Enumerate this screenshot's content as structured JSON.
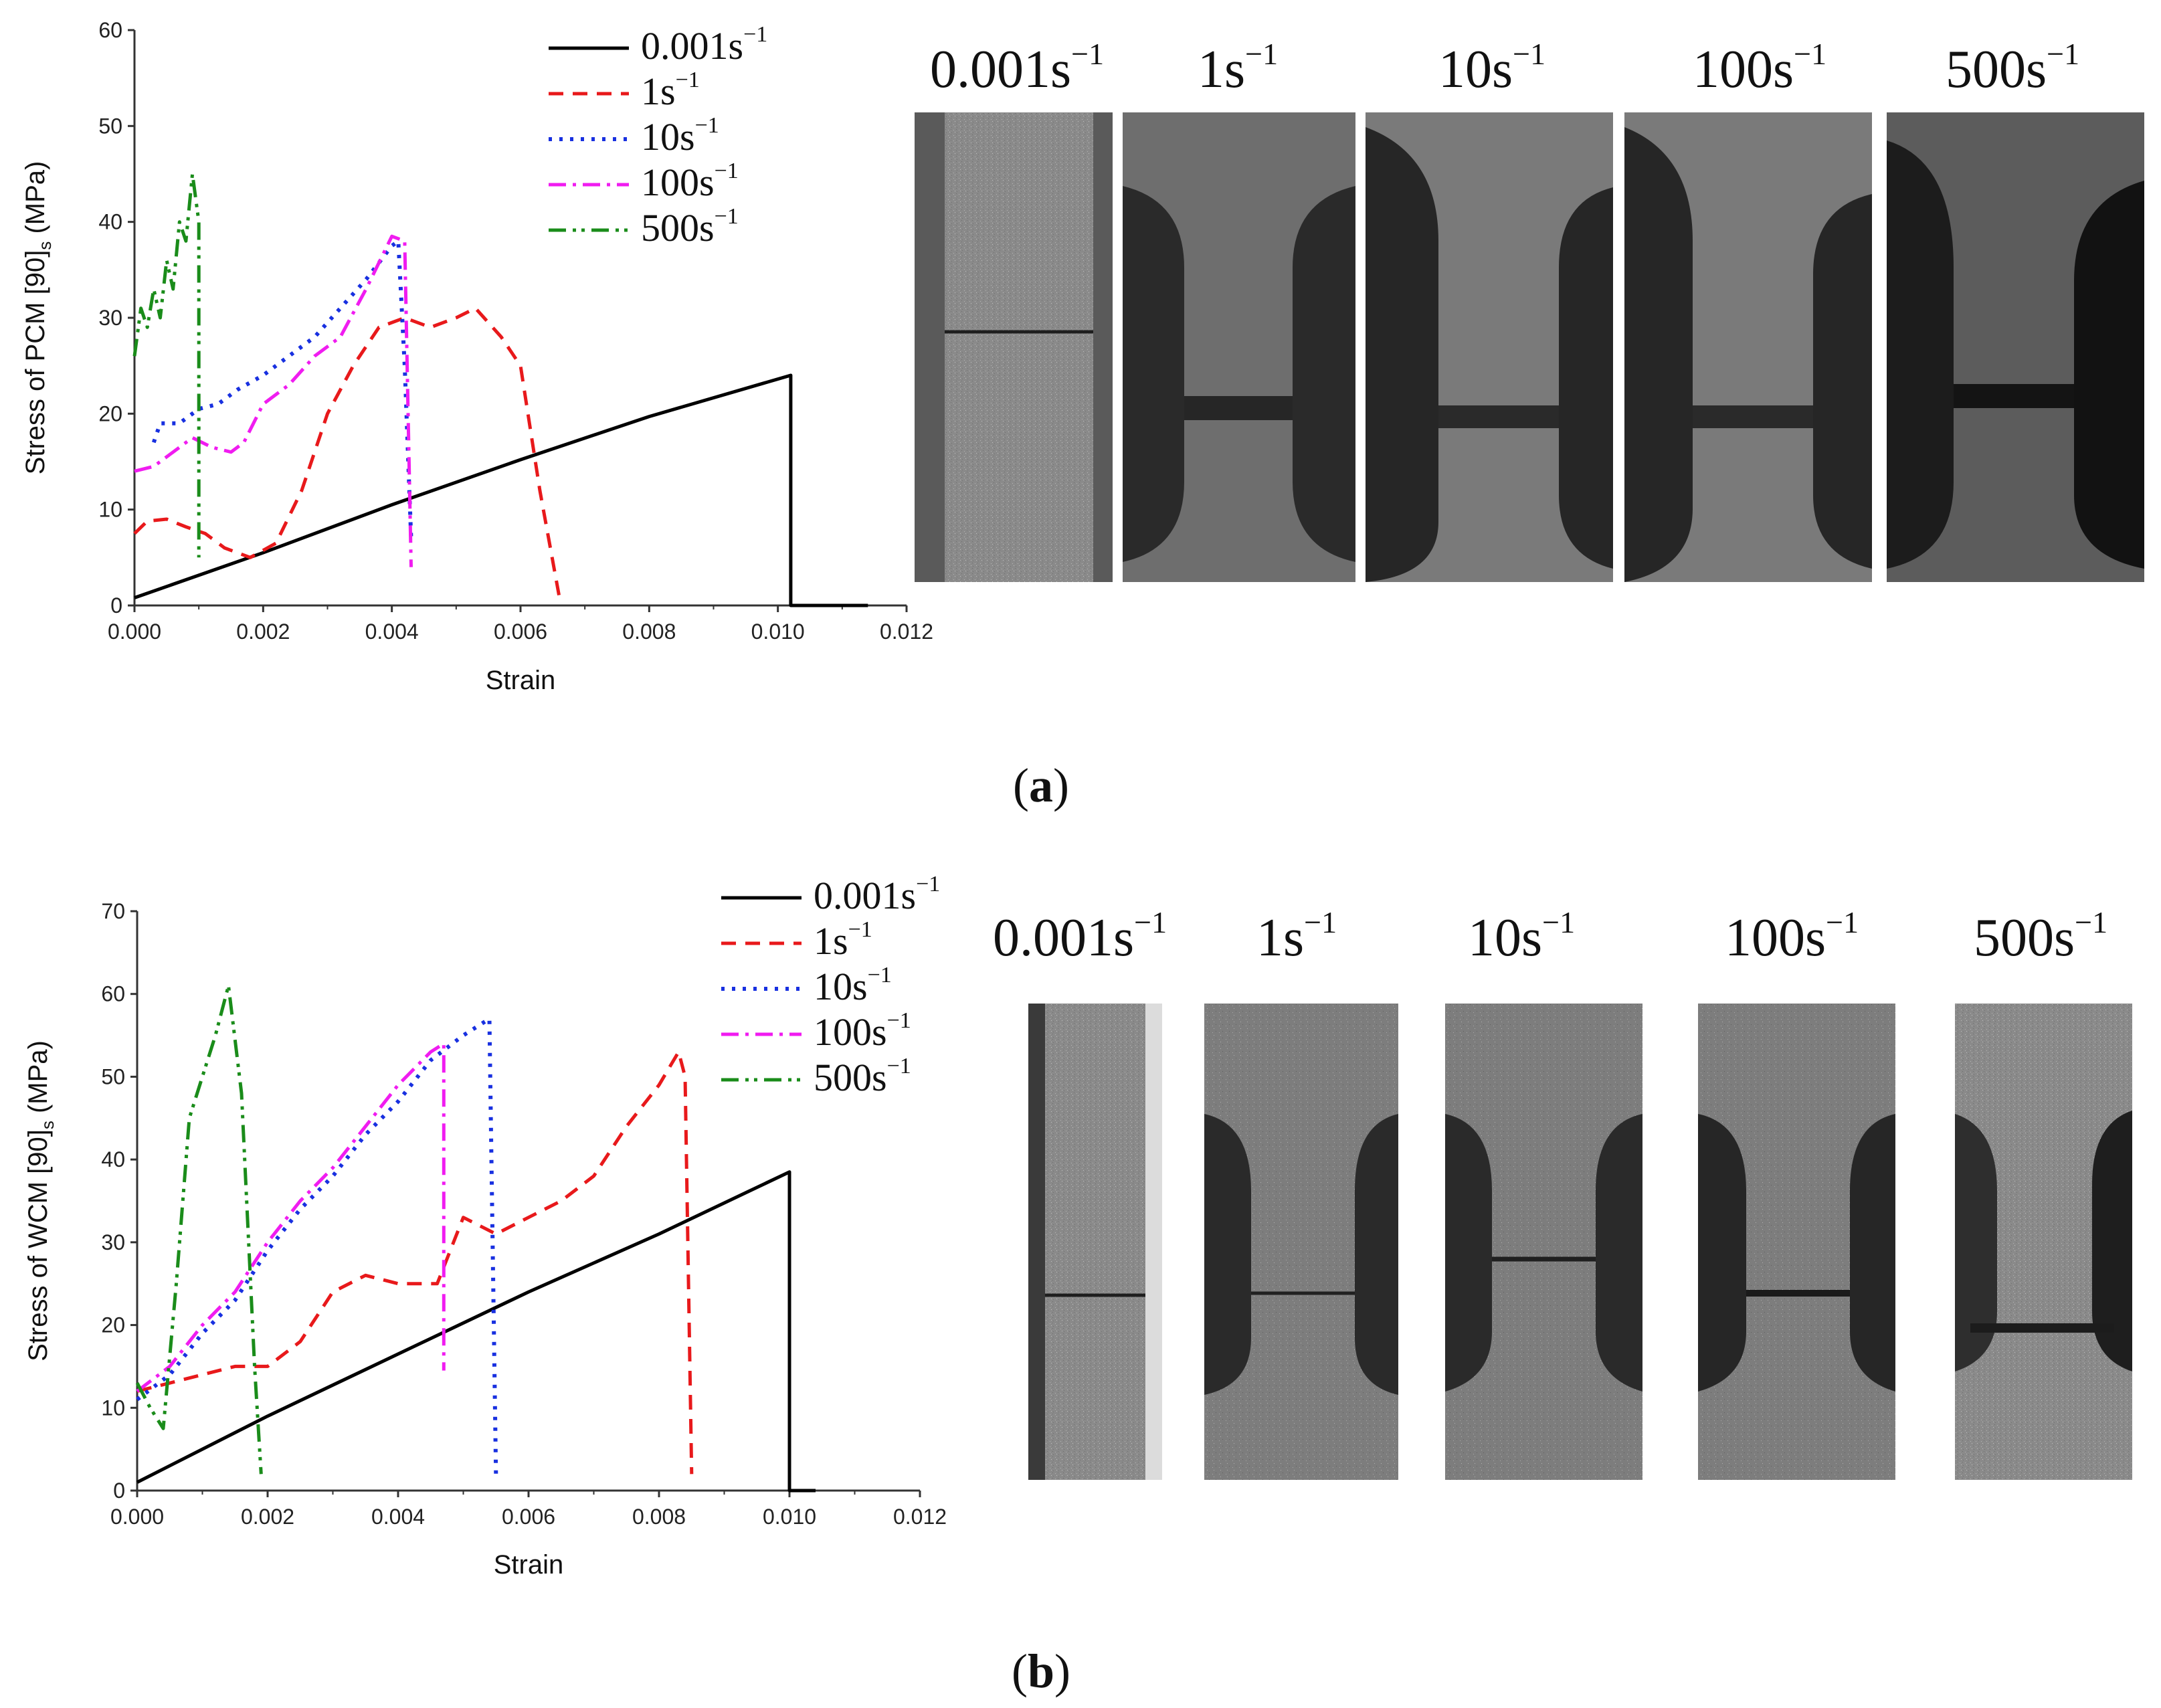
{
  "chart_data": [
    {
      "type": "line",
      "panel_label": "a",
      "xlabel": "Strain",
      "ylabel": "Stress of PCM [90]s (MPa)",
      "ylabel_parts": {
        "pre": "Stress of PCM [90]",
        "sub": "s",
        "post": " (MPa)"
      },
      "xlim": [
        0,
        0.012
      ],
      "ylim": [
        0,
        60
      ],
      "xticks": [
        0,
        0.002,
        0.004,
        0.006,
        0.008,
        0.01,
        0.012
      ],
      "xtick_labels": [
        "0.000",
        "0.002",
        "0.004",
        "0.006",
        "0.008",
        "0.010",
        "0.012"
      ],
      "yticks": [
        0,
        10,
        20,
        30,
        40,
        50,
        60
      ],
      "ytick_labels": [
        "0",
        "10",
        "20",
        "30",
        "40",
        "50",
        "60"
      ],
      "legend_position": "top-right",
      "series": [
        {
          "name": "0.001s-1",
          "base": "0.001s",
          "sup": "−1",
          "color": "#000000",
          "dash": "",
          "width": 5,
          "x": [
            0,
            0.002,
            0.004,
            0.006,
            0.008,
            0.0102,
            0.0102,
            0.0114
          ],
          "y": [
            0.8,
            5.5,
            10.5,
            15.2,
            19.7,
            24,
            0,
            0
          ]
        },
        {
          "name": "1s-1",
          "base": "1s",
          "sup": "−1",
          "color": "#e8191b",
          "dash": "22,14",
          "width": 5,
          "x": [
            0,
            0.0002,
            0.0005,
            0.0008,
            0.0011,
            0.0014,
            0.0018,
            0.0022,
            0.0026,
            0.003,
            0.0034,
            0.0038,
            0.0042,
            0.0046,
            0.005,
            0.0053,
            0.0057,
            0.006,
            0.0063,
            0.0066
          ],
          "y": [
            7.5,
            8.8,
            9,
            8.2,
            7.5,
            6,
            5,
            6.5,
            12,
            20,
            25,
            29,
            30,
            29,
            30,
            31,
            28,
            25,
            12,
            1
          ]
        },
        {
          "name": "10s-1",
          "base": "10s",
          "sup": "−1",
          "color": "#1830e0",
          "dash": "5,11",
          "width": 6,
          "x": [
            0.0003,
            0.0004,
            0.0007,
            0.001,
            0.0013,
            0.0016,
            0.002,
            0.0024,
            0.0028,
            0.0032,
            0.0036,
            0.004,
            0.0041,
            0.0042,
            0.0043
          ],
          "y": [
            17,
            19,
            19,
            20.5,
            21,
            22.5,
            24,
            26,
            28,
            31,
            34,
            37.5,
            38,
            25,
            7
          ]
        },
        {
          "name": "100s-1",
          "base": "100s",
          "sup": "−1",
          "color": "#f01cf0",
          "dash": "26,10,5,10",
          "width": 5,
          "x": [
            0,
            0.0003,
            0.0006,
            0.0009,
            0.0012,
            0.0015,
            0.0017,
            0.002,
            0.0024,
            0.0028,
            0.0032,
            0.0036,
            0.004,
            0.0042,
            0.0043
          ],
          "y": [
            14,
            14.5,
            16,
            17.5,
            16.5,
            16,
            17,
            21,
            23,
            26,
            28,
            33,
            38.5,
            38,
            4
          ]
        },
        {
          "name": "500s-1",
          "base": "500s",
          "sup": "−1",
          "color": "#1a8c1a",
          "dash": "26,10,5,8,5,10",
          "width": 5,
          "x": [
            0,
            0.0001,
            0.0002,
            0.0003,
            0.0004,
            0.0005,
            0.0006,
            0.0007,
            0.0008,
            0.0009,
            0.001,
            0.001
          ],
          "y": [
            26,
            31,
            29,
            33,
            30,
            36,
            33,
            40,
            38,
            45,
            40,
            5
          ]
        }
      ]
    },
    {
      "type": "line",
      "panel_label": "b",
      "xlabel": "Strain",
      "ylabel": "Stress of WCM [90]s (MPa)",
      "ylabel_parts": {
        "pre": "Stress of WCM [90]",
        "sub": "s",
        "post": " (MPa)"
      },
      "xlim": [
        0,
        0.012
      ],
      "ylim": [
        0,
        70
      ],
      "xticks": [
        0,
        0.002,
        0.004,
        0.006,
        0.008,
        0.01,
        0.012
      ],
      "xtick_labels": [
        "0.000",
        "0.002",
        "0.004",
        "0.006",
        "0.008",
        "0.010",
        "0.012"
      ],
      "yticks": [
        0,
        10,
        20,
        30,
        40,
        50,
        60,
        70
      ],
      "ytick_labels": [
        "0",
        "10",
        "20",
        "30",
        "40",
        "50",
        "60",
        "70"
      ],
      "legend_position": "top-right",
      "series": [
        {
          "name": "0.001s-1",
          "base": "0.001s",
          "sup": "−1",
          "color": "#000000",
          "dash": "",
          "width": 5,
          "x": [
            0,
            0.002,
            0.004,
            0.006,
            0.008,
            0.01,
            0.01,
            0.0104
          ],
          "y": [
            1,
            9,
            16.5,
            24,
            31,
            38.5,
            0,
            0
          ]
        },
        {
          "name": "1s-1",
          "base": "1s",
          "sup": "−1",
          "color": "#e8191b",
          "dash": "22,14",
          "width": 5,
          "x": [
            0,
            0.0005,
            0.001,
            0.0015,
            0.002,
            0.0025,
            0.003,
            0.0035,
            0.004,
            0.0046,
            0.005,
            0.0055,
            0.006,
            0.0065,
            0.007,
            0.0075,
            0.008,
            0.0083,
            0.0084,
            0.0085
          ],
          "y": [
            12,
            13,
            14,
            15,
            15,
            18,
            24,
            26,
            25,
            25,
            33,
            31,
            33,
            35,
            38,
            44,
            49,
            53,
            50,
            2
          ]
        },
        {
          "name": "10s-1",
          "base": "10s",
          "sup": "−1",
          "color": "#1830e0",
          "dash": "5,11",
          "width": 6,
          "x": [
            0,
            0.0005,
            0.001,
            0.0015,
            0.002,
            0.0025,
            0.003,
            0.0035,
            0.004,
            0.0045,
            0.005,
            0.0054,
            0.0055
          ],
          "y": [
            11,
            14,
            19,
            23,
            29,
            34,
            38,
            43,
            47,
            52,
            55,
            57,
            2
          ]
        },
        {
          "name": "100s-1",
          "base": "100s",
          "sup": "−1",
          "color": "#f01cf0",
          "dash": "26,10,5,10",
          "width": 5,
          "x": [
            0,
            0.0005,
            0.001,
            0.0015,
            0.002,
            0.0025,
            0.003,
            0.0035,
            0.004,
            0.0045,
            0.0047,
            0.0047
          ],
          "y": [
            12,
            15,
            20,
            24,
            30,
            35,
            39,
            44,
            49,
            53,
            54,
            14.5
          ]
        },
        {
          "name": "500s-1",
          "base": "500s",
          "sup": "−1",
          "color": "#1a8c1a",
          "dash": "26,10,5,8,5,10",
          "width": 5,
          "x": [
            0,
            0.0002,
            0.0004,
            0.0006,
            0.0008,
            0.001,
            0.0012,
            0.0014,
            0.0016,
            0.0018,
            0.0019
          ],
          "y": [
            13,
            10,
            7.5,
            25,
            45,
            50,
            55,
            61,
            48,
            15,
            2
          ]
        }
      ]
    }
  ],
  "figure": {
    "caption_a": "a",
    "caption_b": "b",
    "photos_a": [
      {
        "base": "0.001s",
        "sup": "−1"
      },
      {
        "base": "1s",
        "sup": "−1"
      },
      {
        "base": "10s",
        "sup": "−1"
      },
      {
        "base": "100s",
        "sup": "−1"
      },
      {
        "base": "500s",
        "sup": "−1"
      }
    ],
    "photos_b": [
      {
        "base": "0.001s",
        "sup": "−1"
      },
      {
        "base": "1s",
        "sup": "−1"
      },
      {
        "base": "10s",
        "sup": "−1"
      },
      {
        "base": "100s",
        "sup": "−1"
      },
      {
        "base": "500s",
        "sup": "−1"
      }
    ]
  }
}
